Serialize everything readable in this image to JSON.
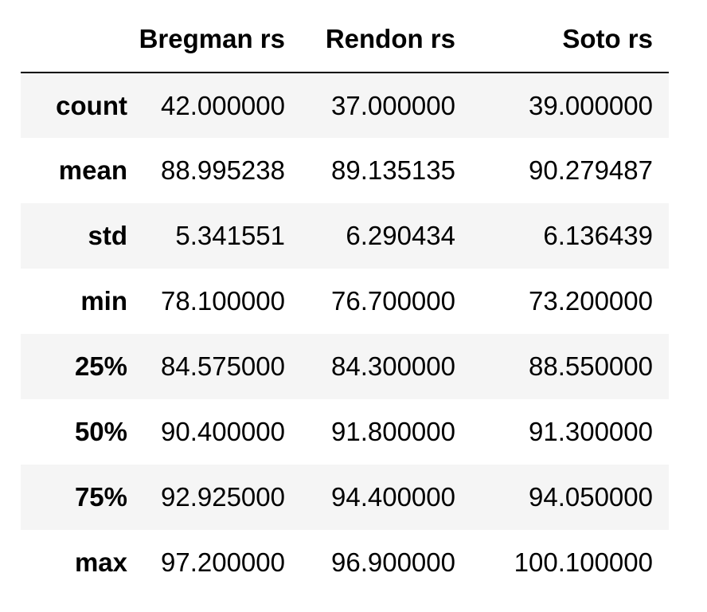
{
  "table": {
    "index_header": "",
    "columns": [
      "Bregman rs",
      "Rendon rs",
      "Soto rs"
    ],
    "rows": [
      {
        "label": "count",
        "values": [
          "42.000000",
          "37.000000",
          "39.000000"
        ]
      },
      {
        "label": "mean",
        "values": [
          "88.995238",
          "89.135135",
          "90.279487"
        ]
      },
      {
        "label": "std",
        "values": [
          "5.341551",
          "6.290434",
          "6.136439"
        ]
      },
      {
        "label": "min",
        "values": [
          "78.100000",
          "76.700000",
          "73.200000"
        ]
      },
      {
        "label": "25%",
        "values": [
          "84.575000",
          "84.300000",
          "88.550000"
        ]
      },
      {
        "label": "50%",
        "values": [
          "90.400000",
          "91.800000",
          "91.300000"
        ]
      },
      {
        "label": "75%",
        "values": [
          "92.925000",
          "94.400000",
          "94.050000"
        ]
      },
      {
        "label": "max",
        "values": [
          "97.200000",
          "96.900000",
          "100.100000"
        ]
      }
    ]
  }
}
